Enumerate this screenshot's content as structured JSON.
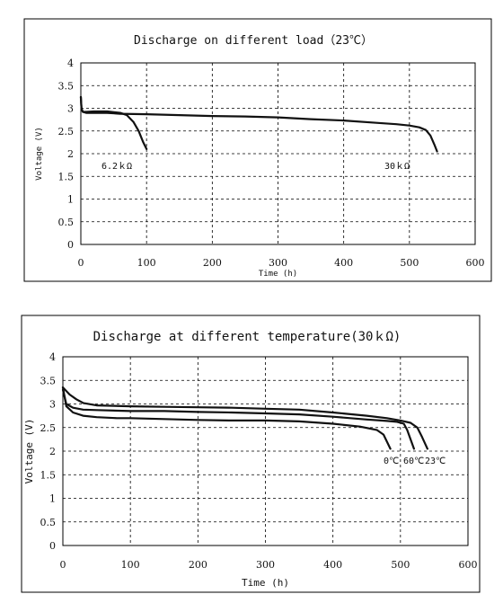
{
  "chart_data": [
    {
      "type": "line",
      "title": "Discharge on different load（23℃）",
      "xlabel": "Time (h)",
      "ylabel": "Voltage (V)",
      "xlim": [
        0,
        600
      ],
      "ylim": [
        0,
        4
      ],
      "xticks": [
        "0",
        "100",
        "200",
        "300",
        "400",
        "500",
        "600"
      ],
      "yticks": [
        "0",
        "0.5",
        "1",
        "1.5",
        "2",
        "2.5",
        "3",
        "3.5",
        "4"
      ],
      "grid": true,
      "annotations": [
        "6.2ｋΩ",
        "30ｋΩ"
      ],
      "series": [
        {
          "name": "6.2ｋΩ",
          "x": [
            0,
            1,
            3,
            8,
            20,
            40,
            60,
            70,
            80,
            88,
            95,
            100
          ],
          "y": [
            3.25,
            3.0,
            2.92,
            2.92,
            2.93,
            2.93,
            2.9,
            2.85,
            2.7,
            2.5,
            2.25,
            2.1
          ]
        },
        {
          "name": "30ｋΩ",
          "x": [
            0,
            1,
            3,
            8,
            20,
            40,
            60,
            100,
            150,
            200,
            250,
            300,
            350,
            400,
            450,
            480,
            500,
            515,
            525,
            532,
            538,
            542
          ],
          "y": [
            3.25,
            3.0,
            2.92,
            2.9,
            2.9,
            2.9,
            2.88,
            2.87,
            2.85,
            2.83,
            2.82,
            2.8,
            2.76,
            2.73,
            2.68,
            2.65,
            2.62,
            2.58,
            2.52,
            2.4,
            2.2,
            2.05
          ]
        }
      ]
    },
    {
      "type": "line",
      "title": "Discharge at different temperature(30ｋΩ)",
      "xlabel": "Time (h)",
      "ylabel": "Voltage (V)",
      "xlim": [
        0,
        600
      ],
      "ylim": [
        0,
        4
      ],
      "xticks": [
        "0",
        "100",
        "200",
        "300",
        "400",
        "500",
        "600"
      ],
      "yticks": [
        "0",
        "0.5",
        "1",
        "1.5",
        "2",
        "2.5",
        "3",
        "3.5",
        "4"
      ],
      "grid": true,
      "annotations": [
        "0℃",
        "60℃",
        "23℃"
      ],
      "series": [
        {
          "name": "0℃",
          "x": [
            0,
            5,
            15,
            30,
            50,
            80,
            100,
            150,
            200,
            250,
            300,
            350,
            400,
            440,
            465,
            475,
            480,
            485
          ],
          "y": [
            3.35,
            2.95,
            2.82,
            2.75,
            2.72,
            2.7,
            2.7,
            2.68,
            2.66,
            2.65,
            2.65,
            2.63,
            2.58,
            2.52,
            2.45,
            2.35,
            2.2,
            2.05
          ]
        },
        {
          "name": "60℃",
          "x": [
            0,
            5,
            15,
            30,
            50,
            100,
            150,
            200,
            250,
            300,
            350,
            400,
            450,
            480,
            495,
            505,
            510,
            515,
            520
          ],
          "y": [
            3.3,
            3.0,
            2.92,
            2.88,
            2.87,
            2.85,
            2.85,
            2.83,
            2.82,
            2.8,
            2.78,
            2.73,
            2.67,
            2.64,
            2.62,
            2.58,
            2.45,
            2.25,
            2.05
          ]
        },
        {
          "name": "23℃",
          "x": [
            0,
            10,
            20,
            30,
            50,
            100,
            150,
            200,
            250,
            300,
            350,
            400,
            450,
            480,
            500,
            515,
            525,
            532,
            540
          ],
          "y": [
            3.35,
            3.2,
            3.1,
            3.02,
            2.97,
            2.95,
            2.94,
            2.93,
            2.92,
            2.9,
            2.88,
            2.82,
            2.75,
            2.7,
            2.65,
            2.6,
            2.5,
            2.3,
            2.05
          ]
        }
      ]
    }
  ]
}
